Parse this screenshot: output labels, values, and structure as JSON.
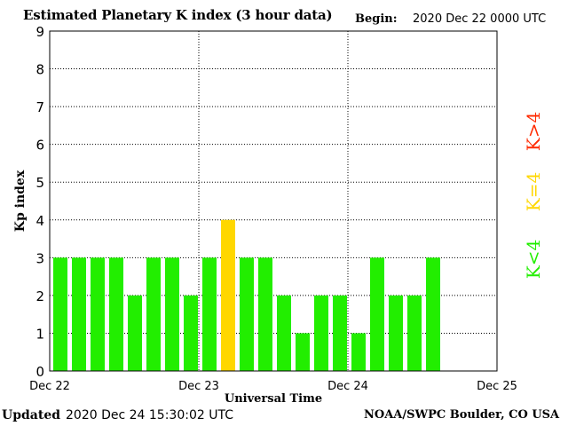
{
  "header": {
    "title": "Estimated Planetary K index (3 hour data)",
    "begin_label": "Begin:",
    "begin_value": "2020 Dec 22 0000 UTC"
  },
  "footer": {
    "updated_label": "Updated",
    "updated_value": "2020 Dec 24 15:30:02 UTC",
    "credit": "NOAA/SWPC Boulder, CO USA"
  },
  "legend": [
    {
      "label": "K>4",
      "color": "#ff2a00"
    },
    {
      "label": "K=4",
      "color": "#ffd700"
    },
    {
      "label": "K<4",
      "color": "#22ee00"
    }
  ],
  "chart_data": {
    "type": "bar",
    "title": "Estimated Planetary K index (3 hour data)",
    "xlabel": "Universal Time",
    "ylabel": "Kp index",
    "ylim": [
      0,
      9
    ],
    "yticks": [
      0,
      1,
      2,
      3,
      4,
      5,
      6,
      7,
      8,
      9
    ],
    "x_tick_labels": [
      "Dec 22",
      "Dec 23",
      "Dec 24",
      "Dec 25"
    ],
    "slots_total": 24,
    "grid": true,
    "colors": {
      "below": "#22ee00",
      "equal": "#ffd700",
      "above": "#ff2a00"
    },
    "values": [
      3,
      3,
      3,
      3,
      2,
      3,
      3,
      2,
      3,
      4,
      3,
      3,
      2,
      1,
      2,
      2,
      1,
      3,
      2,
      2,
      3
    ]
  }
}
